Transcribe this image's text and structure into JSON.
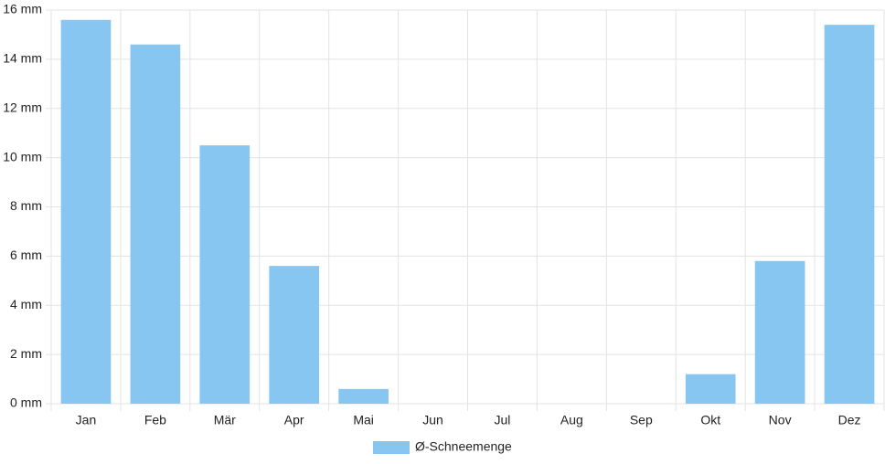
{
  "chart_data": {
    "type": "bar",
    "categories": [
      "Jan",
      "Feb",
      "Mär",
      "Apr",
      "Mai",
      "Jun",
      "Jul",
      "Aug",
      "Sep",
      "Okt",
      "Nov",
      "Dez"
    ],
    "series": [
      {
        "name": "Ø-Schneemenge",
        "color": "#88c6f2",
        "values": [
          15.6,
          14.6,
          10.5,
          5.6,
          0.6,
          0,
          0,
          0,
          0,
          1.2,
          5.8,
          15.4
        ]
      }
    ],
    "ylim": [
      0,
      16
    ],
    "yticks": [
      {
        "value": 0,
        "label": "0 mm"
      },
      {
        "value": 2,
        "label": "2 mm"
      },
      {
        "value": 4,
        "label": "4 mm"
      },
      {
        "value": 6,
        "label": "6 mm"
      },
      {
        "value": 8,
        "label": "8 mm"
      },
      {
        "value": 10,
        "label": "10 mm"
      },
      {
        "value": 12,
        "label": "12 mm"
      },
      {
        "value": 14,
        "label": "14 mm"
      },
      {
        "value": 16,
        "label": "16 mm"
      }
    ],
    "grid": true,
    "legend": "bottom"
  }
}
